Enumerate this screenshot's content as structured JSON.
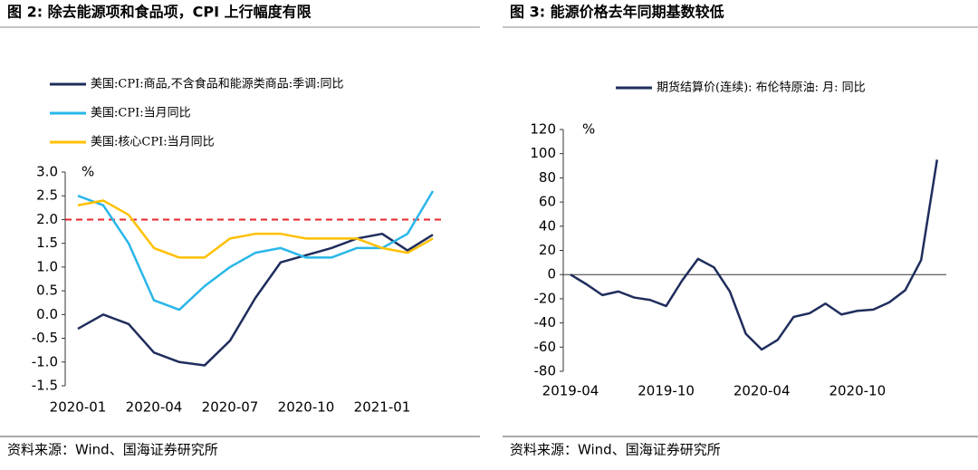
{
  "chart_data": [
    {
      "type": "line",
      "title": "图 2:  除去能源项和食品项，CPI 上行幅度有限",
      "y_unit": "%",
      "categories": [
        "2020-01",
        null,
        null,
        "2020-04",
        null,
        null,
        "2020-07",
        null,
        null,
        "2020-10",
        null,
        null,
        "2021-01",
        null,
        null
      ],
      "series": [
        {
          "name": "美国:CPI:商品,不含食品和能源类商品:季调:同比",
          "color": "#1f2d5c",
          "values": [
            -0.3,
            0,
            -0.2,
            -0.8,
            -1.0,
            -1.07,
            -0.55,
            0.35,
            1.1,
            1.25,
            1.4,
            1.6,
            1.7,
            1.35,
            1.68
          ]
        },
        {
          "name": "美国:CPI:当月同比",
          "color": "#29b6e8",
          "values": [
            2.5,
            2.3,
            1.5,
            0.3,
            0.1,
            0.6,
            1.0,
            1.3,
            1.4,
            1.2,
            1.2,
            1.4,
            1.4,
            1.7,
            2.6
          ]
        },
        {
          "name": "美国:核心CPI:当月同比",
          "color": "#ffc000",
          "values": [
            2.3,
            2.4,
            2.1,
            1.4,
            1.2,
            1.2,
            1.6,
            1.7,
            1.7,
            1.6,
            1.6,
            1.6,
            1.4,
            1.3,
            1.6
          ]
        }
      ],
      "reference_line": {
        "value": 2.0,
        "color": "#e8262a"
      },
      "ylim": [
        -1.5,
        3.0
      ],
      "yticks": [
        {
          "value": 3,
          "label": "3.0"
        },
        {
          "value": 2.5,
          "label": "2.5"
        },
        {
          "value": 2,
          "label": "2.0"
        },
        {
          "value": 1.5,
          "label": "1.5"
        },
        {
          "value": 1,
          "label": "1.0"
        },
        {
          "value": 0.5,
          "label": "0.5"
        },
        {
          "value": 0,
          "label": "0.0"
        },
        {
          "value": -0.5,
          "label": "-0.5"
        },
        {
          "value": -1,
          "label": "-1.0"
        },
        {
          "value": -1.5,
          "label": "-1.5"
        }
      ],
      "source": "资料来源：Wind、国海证券研究所"
    },
    {
      "type": "line",
      "title": "图 3:  能源价格去年同期基数较低",
      "y_unit": "%",
      "categories": [
        "2019-04",
        null,
        null,
        null,
        null,
        null,
        "2019-10",
        null,
        null,
        null,
        null,
        null,
        "2020-04",
        null,
        null,
        null,
        null,
        null,
        "2020-10",
        null,
        null,
        null,
        null,
        null
      ],
      "series": [
        {
          "name": "期货结算价(连续): 布伦特原油: 月: 同比",
          "color": "#1f2d5c",
          "values": [
            0,
            -8,
            -17,
            -14,
            -19,
            -21,
            -26,
            -5,
            13,
            6,
            -14,
            -49,
            -62,
            -54,
            -35,
            -32,
            -24,
            -33,
            -30,
            -29,
            -23,
            -13,
            12,
            95
          ]
        }
      ],
      "ylim": [
        -80,
        120
      ],
      "yticks": [
        120,
        100,
        80,
        60,
        40,
        20,
        0,
        -20,
        -40,
        -60,
        -80
      ],
      "source": "资料来源：Wind、国海证券研究所"
    }
  ]
}
